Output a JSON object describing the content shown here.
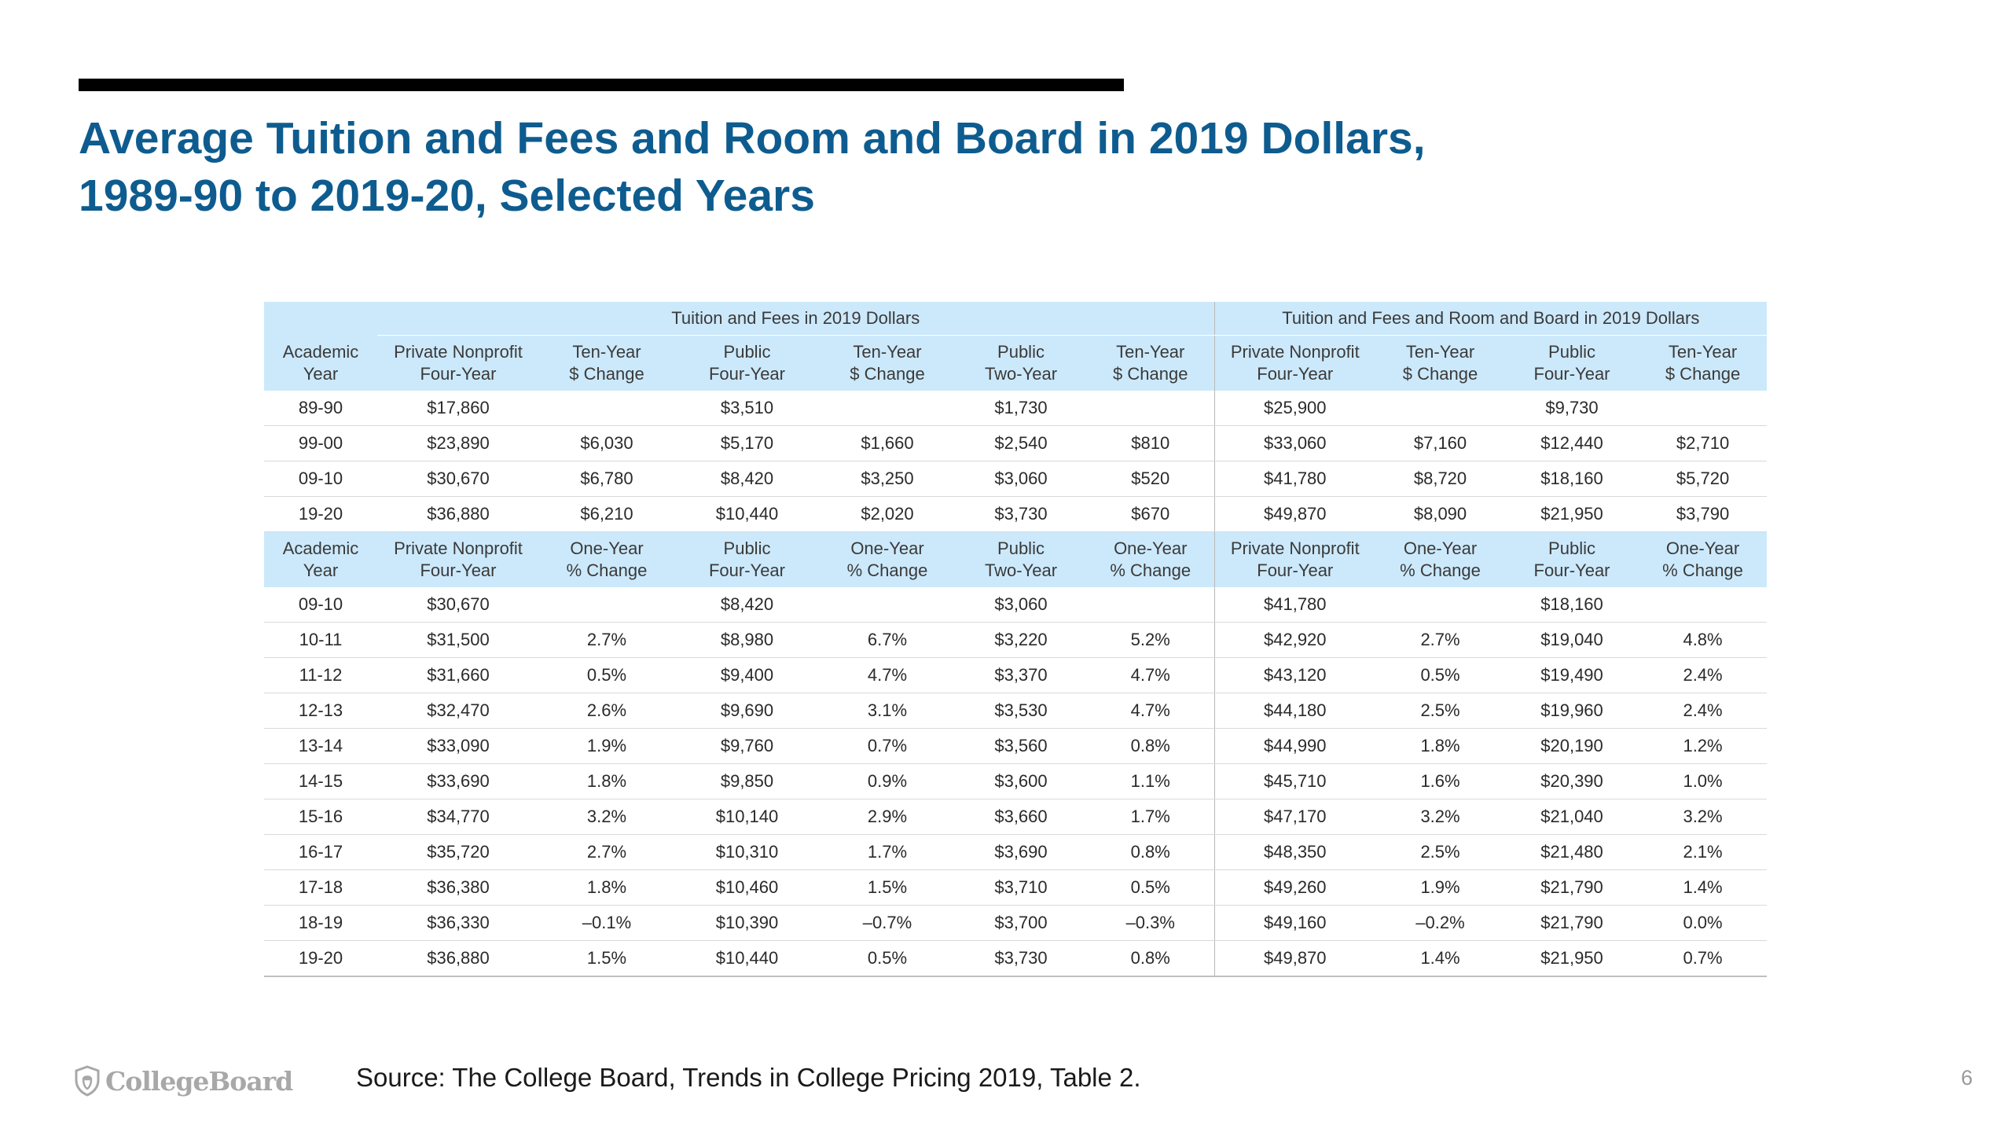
{
  "title": {
    "line1": "Average Tuition and Fees and Room and Board in 2019 Dollars,",
    "line2": "1989-90 to 2019-20, Selected Years"
  },
  "table": {
    "group_headers": {
      "tuition": "Tuition and Fees in 2019 Dollars",
      "room_board": "Tuition and Fees and Room and Board in 2019 Dollars"
    },
    "header_ten_year": [
      [
        "Academic",
        "Year"
      ],
      [
        "Private Nonprofit",
        "Four-Year"
      ],
      [
        "Ten-Year",
        "$ Change"
      ],
      [
        "Public",
        "Four-Year"
      ],
      [
        "Ten-Year",
        "$ Change"
      ],
      [
        "Public",
        "Two-Year"
      ],
      [
        "Ten-Year",
        "$ Change"
      ],
      [
        "Private Nonprofit",
        "Four-Year"
      ],
      [
        "Ten-Year",
        "$ Change"
      ],
      [
        "Public",
        "Four-Year"
      ],
      [
        "Ten-Year",
        "$ Change"
      ]
    ],
    "rows_ten_year": [
      [
        "89-90",
        "$17,860",
        "",
        "$3,510",
        "",
        "$1,730",
        "",
        "$25,900",
        "",
        "$9,730",
        ""
      ],
      [
        "99-00",
        "$23,890",
        "$6,030",
        "$5,170",
        "$1,660",
        "$2,540",
        "$810",
        "$33,060",
        "$7,160",
        "$12,440",
        "$2,710"
      ],
      [
        "09-10",
        "$30,670",
        "$6,780",
        "$8,420",
        "$3,250",
        "$3,060",
        "$520",
        "$41,780",
        "$8,720",
        "$18,160",
        "$5,720"
      ],
      [
        "19-20",
        "$36,880",
        "$6,210",
        "$10,440",
        "$2,020",
        "$3,730",
        "$670",
        "$49,870",
        "$8,090",
        "$21,950",
        "$3,790"
      ]
    ],
    "header_one_year": [
      [
        "Academic",
        "Year"
      ],
      [
        "Private Nonprofit",
        "Four-Year"
      ],
      [
        "One-Year",
        "% Change"
      ],
      [
        "Public",
        "Four-Year"
      ],
      [
        "One-Year",
        "% Change"
      ],
      [
        "Public",
        "Two-Year"
      ],
      [
        "One-Year",
        "% Change"
      ],
      [
        "Private Nonprofit",
        "Four-Year"
      ],
      [
        "One-Year",
        "% Change"
      ],
      [
        "Public",
        "Four-Year"
      ],
      [
        "One-Year",
        "% Change"
      ]
    ],
    "rows_one_year": [
      [
        "09-10",
        "$30,670",
        "",
        "$8,420",
        "",
        "$3,060",
        "",
        "$41,780",
        "",
        "$18,160",
        ""
      ],
      [
        "10-11",
        "$31,500",
        "2.7%",
        "$8,980",
        "6.7%",
        "$3,220",
        "5.2%",
        "$42,920",
        "2.7%",
        "$19,040",
        "4.8%"
      ],
      [
        "11-12",
        "$31,660",
        "0.5%",
        "$9,400",
        "4.7%",
        "$3,370",
        "4.7%",
        "$43,120",
        "0.5%",
        "$19,490",
        "2.4%"
      ],
      [
        "12-13",
        "$32,470",
        "2.6%",
        "$9,690",
        "3.1%",
        "$3,530",
        "4.7%",
        "$44,180",
        "2.5%",
        "$19,960",
        "2.4%"
      ],
      [
        "13-14",
        "$33,090",
        "1.9%",
        "$9,760",
        "0.7%",
        "$3,560",
        "0.8%",
        "$44,990",
        "1.8%",
        "$20,190",
        "1.2%"
      ],
      [
        "14-15",
        "$33,690",
        "1.8%",
        "$9,850",
        "0.9%",
        "$3,600",
        "1.1%",
        "$45,710",
        "1.6%",
        "$20,390",
        "1.0%"
      ],
      [
        "15-16",
        "$34,770",
        "3.2%",
        "$10,140",
        "2.9%",
        "$3,660",
        "1.7%",
        "$47,170",
        "3.2%",
        "$21,040",
        "3.2%"
      ],
      [
        "16-17",
        "$35,720",
        "2.7%",
        "$10,310",
        "1.7%",
        "$3,690",
        "0.8%",
        "$48,350",
        "2.5%",
        "$21,480",
        "2.1%"
      ],
      [
        "17-18",
        "$36,380",
        "1.8%",
        "$10,460",
        "1.5%",
        "$3,710",
        "0.5%",
        "$49,260",
        "1.9%",
        "$21,790",
        "1.4%"
      ],
      [
        "18-19",
        "$36,330",
        "–0.1%",
        "$10,390",
        "–0.7%",
        "$3,700",
        "–0.3%",
        "$49,160",
        "–0.2%",
        "$21,790",
        "0.0%"
      ],
      [
        "19-20",
        "$36,880",
        "1.5%",
        "$10,440",
        "0.5%",
        "$3,730",
        "0.8%",
        "$49,870",
        "1.4%",
        "$21,950",
        "0.7%"
      ]
    ]
  },
  "footer": {
    "logo_text": "CollegeBoard",
    "logo_icon": "shield-acorn-icon",
    "source": "Source: The College Board, Trends in College Pricing 2019, Table 2.",
    "page_number": "6"
  },
  "colors": {
    "title": "#0e5c8f",
    "header_fill": "#cce9fb",
    "rule": "#000000"
  }
}
